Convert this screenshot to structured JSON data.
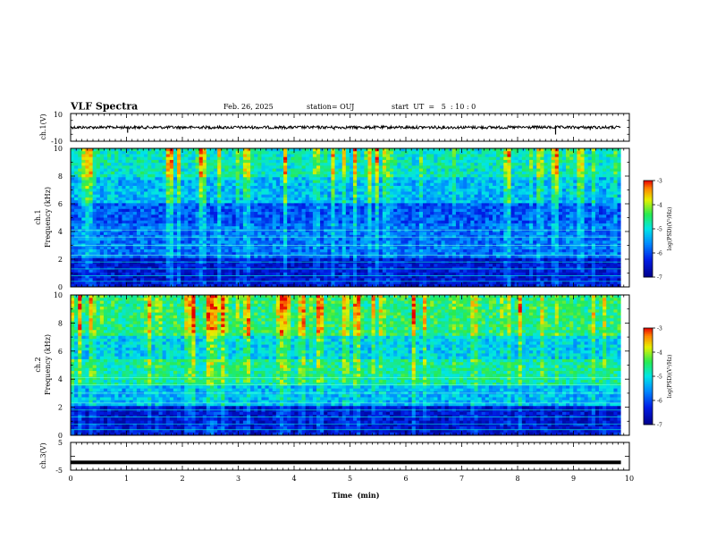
{
  "header": {
    "title": "VLF Spectra",
    "date": "Feb. 26, 2025",
    "station": "station= OUJ",
    "start": "start  UT  =   5  : 10 : 0"
  },
  "chart_data": [
    {
      "type": "line",
      "panel": "ch1",
      "ylabel": "ch.1(V)",
      "xlim": [
        0,
        10
      ],
      "ylim": [
        -10,
        10
      ],
      "y_ticks": [
        "10",
        "-10"
      ],
      "x_ticks": [],
      "series": [
        {
          "values_description_x": [
            0,
            9.85
          ],
          "baseline": 0,
          "amplitude": 1,
          "color": "#000000"
        }
      ]
    },
    {
      "type": "heatmap",
      "panel": "ch1-spectrogram",
      "ylabel": "ch.1\nFrequency (kHz)",
      "xlim": [
        0,
        9.85
      ],
      "ylim": [
        0,
        10
      ],
      "y_ticks": [
        "0",
        "2",
        "4",
        "6",
        "8",
        "10"
      ],
      "colorbar": {
        "label": "log(PSD)(V²/Hz)",
        "range": [
          -7,
          -3
        ],
        "ticks": [
          "-3",
          "-4",
          "-5",
          "-6",
          "-7"
        ]
      }
    },
    {
      "type": "heatmap",
      "panel": "ch2-spectrogram",
      "ylabel": "ch.2\nFrequency (kHz)",
      "xlim": [
        0,
        9.85
      ],
      "ylim": [
        0,
        10
      ],
      "y_ticks": [
        "0",
        "2",
        "4",
        "6",
        "8",
        "10"
      ],
      "colorbar": {
        "label": "log(PSD)(V²/Hz)",
        "range": [
          -7,
          -3
        ],
        "ticks": [
          "-3",
          "-4",
          "-5",
          "-6",
          "-7"
        ]
      }
    },
    {
      "type": "line",
      "panel": "ch3",
      "ylabel": "ch.3(V)",
      "xlim": [
        0,
        10
      ],
      "ylim": [
        -5,
        5
      ],
      "y_ticks": [
        "5",
        "0",
        "-5"
      ],
      "xlabel": "Time  (min)",
      "x_ticks": [
        "0",
        "1",
        "2",
        "3",
        "4",
        "5",
        "6",
        "7",
        "8",
        "9",
        "10"
      ],
      "series": [
        {
          "constant": -2.2,
          "color": "#000000"
        }
      ]
    }
  ],
  "labels": {
    "ch1_ylabel": "ch.1(V)",
    "ch1s_ylabel_a": "ch.1",
    "ch1s_ylabel_b": "Frequency (kHz)",
    "ch2s_ylabel_a": "ch.2",
    "ch2s_ylabel_b": "Frequency (kHz)",
    "ch3_ylabel": "ch.3(V)",
    "xlabel": "Time  (min)",
    "cbar_label": "log(PSD)(V²/Hz)"
  }
}
